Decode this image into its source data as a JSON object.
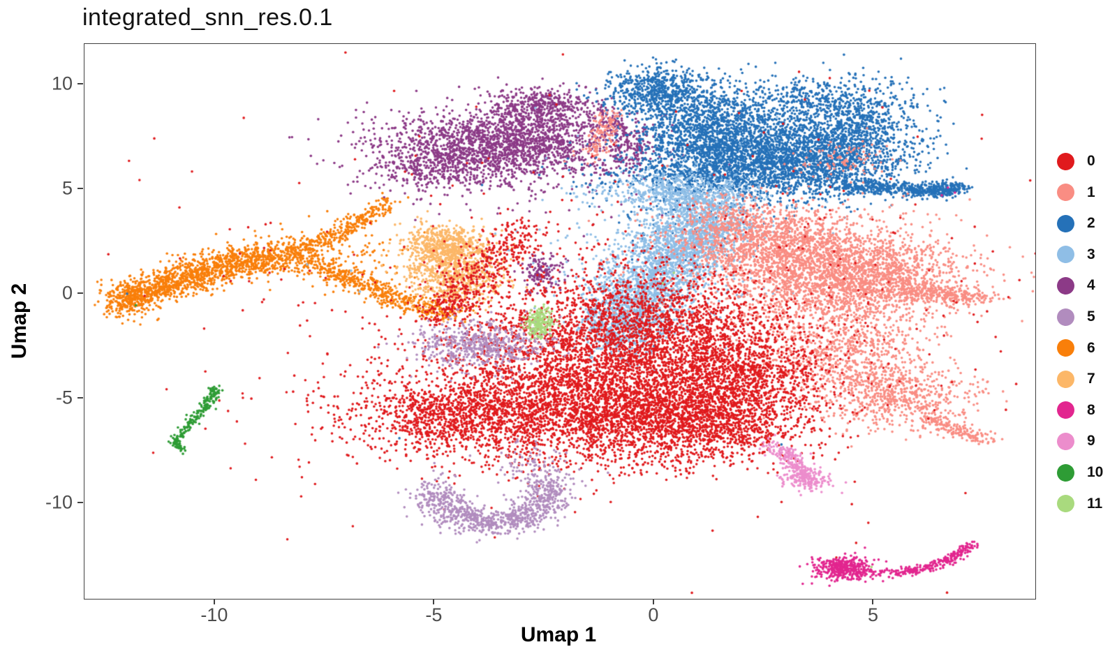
{
  "chart_data": {
    "type": "scatter",
    "title": "integrated_snn_res.0.1",
    "xlabel": "Umap 1",
    "ylabel": "Umap 2",
    "xlim": [
      -12.97,
      8.68
    ],
    "ylim": [
      -14.57,
      11.93
    ],
    "x_ticks": [
      -10,
      -5,
      0,
      5
    ],
    "y_ticks": [
      -10,
      -5,
      0,
      5,
      10
    ],
    "grid": false,
    "legend_position": "right",
    "legend_title": "",
    "point_radius_px": 1.8,
    "seed": 42,
    "draw_order": [
      4,
      6,
      7,
      2,
      3,
      1,
      0,
      5,
      9,
      8,
      10,
      11
    ],
    "clusters": [
      {
        "id": 0,
        "label": "0",
        "color": "#E01A1D",
        "blobs": [
          [
            -2.2,
            -5.6,
            2.2,
            1.3,
            3000
          ],
          [
            0.6,
            -3.2,
            1.5,
            1.6,
            2200
          ],
          [
            0.9,
            -6.3,
            1.2,
            0.9,
            1100
          ],
          [
            -1.9,
            -2.4,
            1.4,
            1.4,
            1100
          ],
          [
            -4.7,
            -5.9,
            0.8,
            0.7,
            400
          ],
          [
            -0.2,
            -0.5,
            1.2,
            1.1,
            500
          ],
          [
            2.2,
            -4.2,
            0.8,
            1.2,
            500
          ],
          [
            -1.0,
            -2.0,
            3.6,
            3.0,
            500
          ],
          [
            -1.0,
            0.0,
            6.5,
            5.0,
            220
          ]
        ],
        "paths": [
          {
            "pts": [
              [
                -4.9,
                -1.2
              ],
              [
                -4.3,
                0.3
              ],
              [
                -3.6,
                1.6
              ],
              [
                -2.9,
                2.9
              ]
            ],
            "w": 0.35,
            "n": 450
          }
        ],
        "outliers": [
          [
            4.0,
            10.3
          ],
          [
            4.9,
            9.7
          ],
          [
            3.3,
            10.6
          ],
          [
            5.2,
            8.9
          ],
          [
            6.0,
            7.5
          ],
          [
            -9.9,
            -5.1
          ],
          [
            -9.7,
            -5.6
          ],
          [
            -9.5,
            -6.1
          ],
          [
            -9.8,
            0.85
          ],
          [
            -11.6,
            -0.1
          ],
          [
            7.3,
            3.2
          ],
          [
            2.5,
            7.7
          ],
          [
            0.5,
            8.7
          ],
          [
            -0.3,
            4.0
          ],
          [
            4.6,
            -11.9
          ],
          [
            4.15,
            -12.6
          ],
          [
            7.0,
            0.6
          ],
          [
            6.6,
            -2.0
          ]
        ]
      },
      {
        "id": 1,
        "label": "1",
        "color": "#F98D83",
        "blobs": [
          [
            3.9,
            1.0,
            1.3,
            1.2,
            2000
          ],
          [
            3.0,
            2.5,
            0.8,
            0.8,
            600
          ],
          [
            5.3,
            0.6,
            0.9,
            0.8,
            600
          ],
          [
            4.3,
            -2.8,
            0.9,
            1.0,
            600
          ],
          [
            5.6,
            -4.9,
            0.85,
            0.75,
            650
          ],
          [
            1.7,
            3.1,
            0.75,
            0.85,
            420
          ],
          [
            4.3,
            6.3,
            0.5,
            0.45,
            90
          ],
          [
            3.2,
            0.0,
            2.2,
            2.2,
            300
          ]
        ],
        "paths": [
          {
            "pts": [
              [
                5.8,
                0.0
              ],
              [
                6.6,
                -0.1
              ],
              [
                7.5,
                -0.15
              ]
            ],
            "w": 0.2,
            "n": 260
          },
          {
            "pts": [
              [
                6.2,
                -6.0
              ],
              [
                6.9,
                -6.5
              ],
              [
                7.6,
                -7.05
              ]
            ],
            "w": 0.15,
            "n": 150
          },
          {
            "pts": [
              [
                -1.05,
                8.6
              ],
              [
                -1.2,
                7.6
              ],
              [
                -1.45,
                6.4
              ]
            ],
            "w": 0.18,
            "n": 130
          }
        ],
        "outliers": [
          [
            0.3,
            6.1
          ],
          [
            -0.6,
            5.2
          ],
          [
            2.0,
            -6.5
          ],
          [
            2.3,
            -7.0
          ]
        ]
      },
      {
        "id": 2,
        "label": "2",
        "color": "#2571B8",
        "blobs": [
          [
            0.05,
            9.7,
            0.55,
            0.6,
            600
          ],
          [
            1.3,
            7.8,
            0.9,
            1.1,
            1200
          ],
          [
            2.6,
            6.5,
            1.3,
            1.0,
            2200
          ],
          [
            4.6,
            7.6,
            0.75,
            1.2,
            1000
          ],
          [
            3.4,
            9.3,
            1.2,
            0.5,
            350
          ],
          [
            1.2,
            5.6,
            1.4,
            0.5,
            450
          ],
          [
            3.9,
            6.0,
            0.9,
            0.7,
            250
          ],
          [
            6.7,
            5.05,
            0.25,
            0.2,
            100
          ],
          [
            0.8,
            3.8,
            1.0,
            1.2,
            120
          ]
        ],
        "paths": [
          {
            "pts": [
              [
                4.3,
                5.2
              ],
              [
                5.5,
                5.0
              ],
              [
                6.5,
                4.9
              ],
              [
                6.9,
                5.1
              ]
            ],
            "w": 0.16,
            "n": 450
          }
        ],
        "outliers": [
          [
            -5.8,
            -6.9
          ],
          [
            2.9,
            -7.2
          ],
          [
            -12.0,
            0.0
          ],
          [
            0.0,
            -2.5
          ]
        ]
      },
      {
        "id": 3,
        "label": "3",
        "color": "#8FBEE6",
        "blobs": [
          [
            0.55,
            4.8,
            0.95,
            0.5,
            550
          ],
          [
            1.15,
            3.4,
            0.5,
            0.75,
            650
          ],
          [
            0.5,
            2.0,
            0.6,
            0.8,
            700
          ],
          [
            -0.2,
            0.2,
            0.6,
            0.9,
            750
          ],
          [
            -0.75,
            -1.5,
            0.5,
            0.8,
            600
          ],
          [
            0.3,
            1.5,
            1.4,
            2.3,
            400
          ]
        ],
        "paths": [],
        "outliers": [
          [
            -7.9,
            1.4
          ],
          [
            -6.9,
            1.1
          ],
          [
            -6.7,
            0.1
          ]
        ]
      },
      {
        "id": 4,
        "label": "4",
        "color": "#8C3A87",
        "blobs": [
          [
            -3.4,
            7.2,
            1.35,
            0.75,
            1700
          ],
          [
            -2.65,
            8.9,
            0.6,
            0.5,
            450
          ],
          [
            -4.9,
            6.0,
            0.8,
            0.55,
            350
          ],
          [
            -2.55,
            1.05,
            0.22,
            0.4,
            140
          ],
          [
            -3.2,
            6.2,
            1.8,
            1.2,
            250
          ]
        ],
        "paths": [
          {
            "pts": [
              [
                -1.3,
                8.9
              ],
              [
                -0.7,
                7.8
              ],
              [
                -0.4,
                6.8
              ],
              [
                -0.6,
                6.0
              ]
            ],
            "w": 0.25,
            "n": 220
          }
        ],
        "outliers": [
          [
            4.67,
            1.1
          ],
          [
            4.7,
            0.7
          ],
          [
            -1.6,
            2.75
          ],
          [
            -4.3,
            -1.9
          ],
          [
            -3.9,
            -2.15
          ],
          [
            1.9,
            1.6
          ]
        ]
      },
      {
        "id": 5,
        "label": "5",
        "color": "#B18CBE",
        "blobs": [
          [
            -4.05,
            -2.45,
            0.75,
            0.55,
            550
          ],
          [
            -2.7,
            -8.2,
            0.4,
            0.6,
            90
          ]
        ],
        "paths": [
          {
            "pts": [
              [
                -5.0,
                -9.2
              ],
              [
                -4.8,
                -10.0
              ],
              [
                -4.3,
                -10.6
              ],
              [
                -3.6,
                -10.95
              ],
              [
                -2.9,
                -10.6
              ],
              [
                -2.5,
                -9.9
              ],
              [
                -2.35,
                -9.1
              ]
            ],
            "w": 0.3,
            "n": 900
          }
        ],
        "outliers": [
          [
            -1.05,
            -8.55
          ],
          [
            -2.0,
            -7.6
          ]
        ]
      },
      {
        "id": 6,
        "label": "6",
        "color": "#F97F0A",
        "blobs": [
          [
            -11.95,
            -0.25,
            0.25,
            0.35,
            150
          ],
          [
            -7.0,
            1.8,
            0.8,
            0.8,
            120
          ]
        ],
        "paths": [
          {
            "pts": [
              [
                -12.05,
                -0.4
              ],
              [
                -11.5,
                0.2
              ],
              [
                -10.7,
                0.75
              ],
              [
                -9.8,
                1.3
              ],
              [
                -8.9,
                1.65
              ],
              [
                -8.1,
                1.95
              ]
            ],
            "w": 0.38,
            "n": 1500
          },
          {
            "pts": [
              [
                -8.0,
                2.1
              ],
              [
                -7.3,
                2.8
              ],
              [
                -6.6,
                3.6
              ],
              [
                -6.1,
                4.3
              ]
            ],
            "w": 0.17,
            "n": 280
          },
          {
            "pts": [
              [
                -7.9,
                1.4
              ],
              [
                -7.2,
                0.9
              ],
              [
                -6.5,
                0.4
              ],
              [
                -5.8,
                -0.3
              ],
              [
                -5.0,
                -0.75
              ],
              [
                -4.5,
                -0.9
              ]
            ],
            "w": 0.22,
            "n": 500
          }
        ],
        "outliers": [
          [
            -5.6,
            4.6
          ],
          [
            -4.2,
            -1.0
          ]
        ]
      },
      {
        "id": 7,
        "label": "7",
        "color": "#FCB768",
        "blobs": [
          [
            -4.75,
            2.3,
            0.45,
            0.5,
            500
          ],
          [
            -4.6,
            1.2,
            0.55,
            0.75,
            600
          ],
          [
            -4.5,
            0.3,
            0.5,
            0.5,
            150
          ]
        ],
        "paths": [],
        "outliers": [
          [
            -5.9,
            3.3
          ]
        ]
      },
      {
        "id": 8,
        "label": "8",
        "color": "#E2268F",
        "blobs": [
          [
            4.3,
            -13.1,
            0.32,
            0.3,
            380
          ]
        ],
        "paths": [
          {
            "pts": [
              [
                4.7,
                -13.3
              ],
              [
                5.5,
                -13.35
              ],
              [
                6.2,
                -13.1
              ],
              [
                6.8,
                -12.6
              ],
              [
                7.2,
                -12.0
              ]
            ],
            "w": 0.1,
            "n": 260
          }
        ],
        "outliers": [
          [
            6.69,
            5.07
          ],
          [
            6.85,
            4.83
          ],
          [
            6.55,
            4.7
          ]
        ]
      },
      {
        "id": 9,
        "label": "9",
        "color": "#EC8DCC",
        "blobs": [
          [
            3.45,
            -8.85,
            0.3,
            0.22,
            130
          ]
        ],
        "paths": [
          {
            "pts": [
              [
                2.75,
                -7.3
              ],
              [
                3.1,
                -7.9
              ],
              [
                3.45,
                -8.5
              ],
              [
                3.7,
                -8.9
              ]
            ],
            "w": 0.16,
            "n": 230
          }
        ],
        "outliers": [
          [
            2.6,
            -6.9
          ],
          [
            2.75,
            -6.75
          ]
        ]
      },
      {
        "id": 10,
        "label": "10",
        "color": "#2E9C35",
        "blobs": [],
        "paths": [
          {
            "pts": [
              [
                -10.0,
                -4.55
              ],
              [
                -10.05,
                -4.9
              ],
              [
                -10.25,
                -5.5
              ],
              [
                -10.5,
                -6.05
              ],
              [
                -10.75,
                -6.6
              ],
              [
                -10.9,
                -7.1
              ],
              [
                -10.75,
                -7.5
              ]
            ],
            "w": 0.07,
            "n": 220
          }
        ],
        "outliers": [
          [
            -11.8,
            -0.55
          ],
          [
            -9.9,
            -4.4
          ]
        ]
      },
      {
        "id": 11,
        "label": "11",
        "color": "#A9DA7E",
        "blobs": [
          [
            -2.6,
            -1.35,
            0.16,
            0.33,
            190
          ]
        ],
        "paths": [],
        "outliers": [
          [
            -2.35,
            -2.0
          ],
          [
            0.45,
            1.0
          ],
          [
            0.2,
            0.5
          ],
          [
            4.95,
            -13.05
          ]
        ]
      }
    ]
  },
  "layout_text": {
    "note": ""
  }
}
